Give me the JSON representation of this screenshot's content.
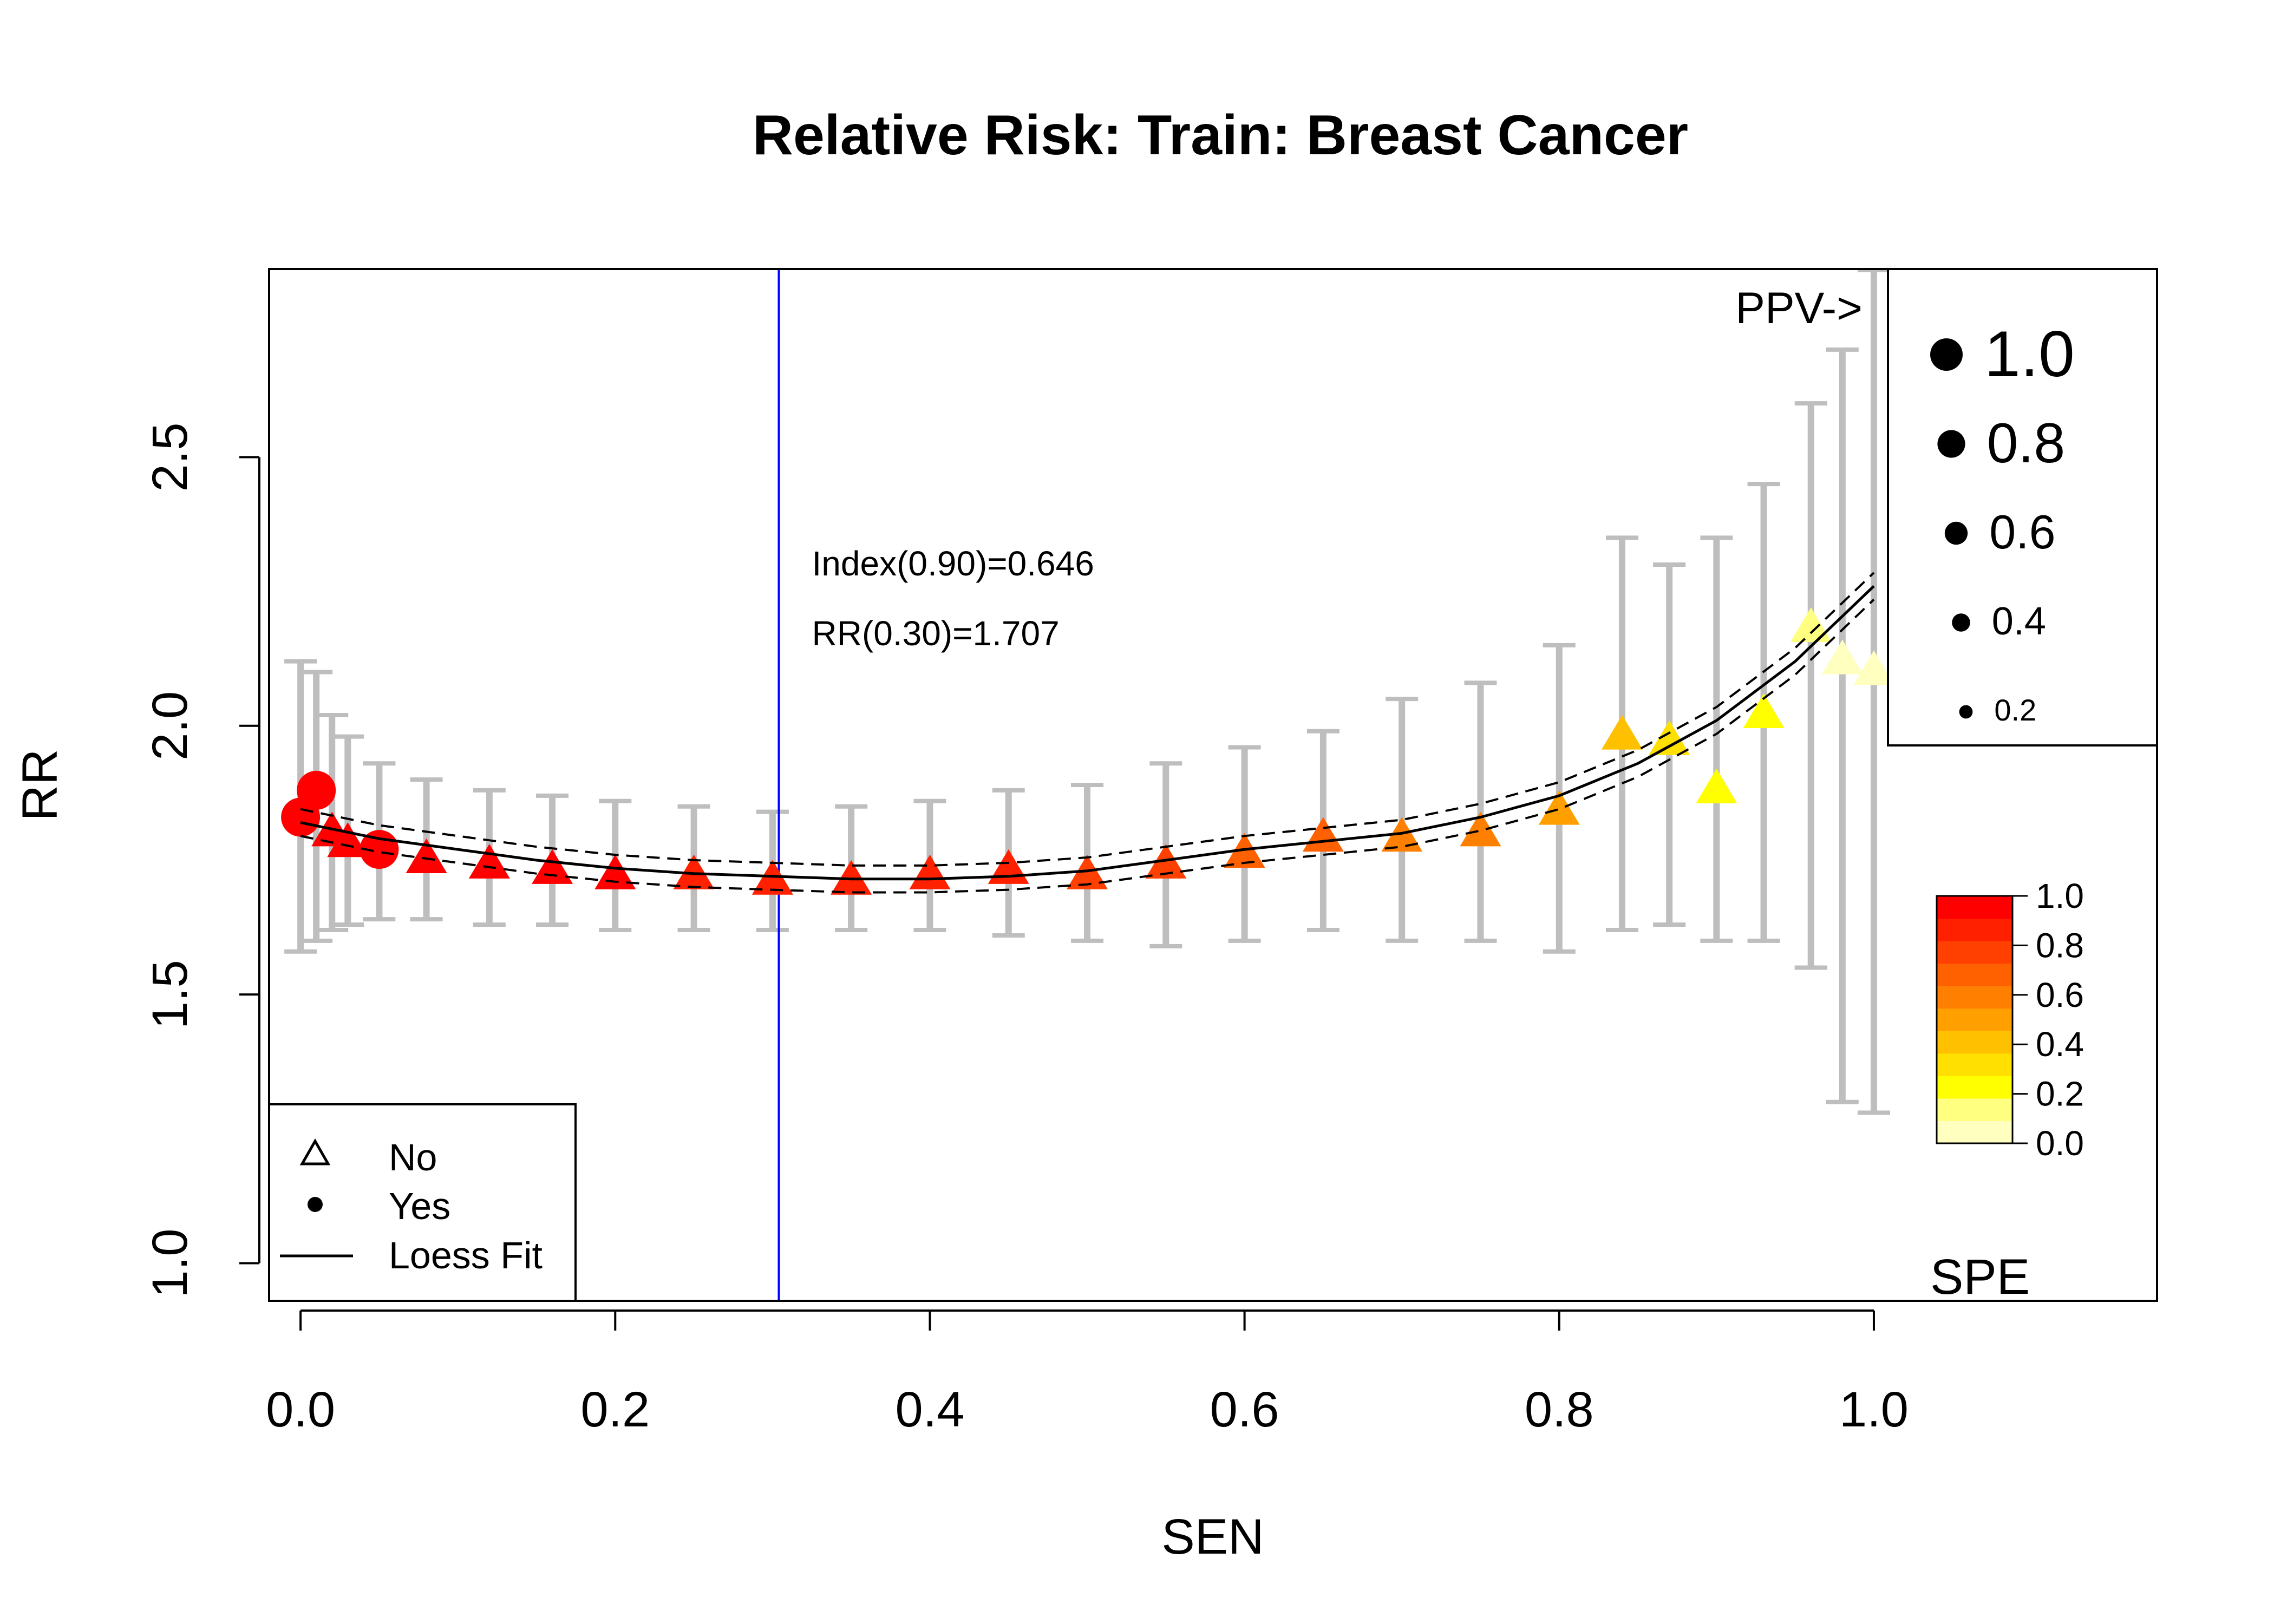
{
  "chart_data": {
    "type": "scatter",
    "title": "Relative Risk: Train: Breast Cancer",
    "xlabel": "SEN",
    "ylabel": "RR",
    "xlim": [
      -0.02,
      1.18
    ],
    "ylim": [
      0.93,
      2.85
    ],
    "x_ticks": [
      0.0,
      0.2,
      0.4,
      0.6,
      0.8,
      1.0
    ],
    "x_tick_labels": [
      "0.0",
      "0.2",
      "0.4",
      "0.6",
      "0.8",
      "1.0"
    ],
    "y_ticks": [
      1.0,
      1.5,
      2.0,
      2.5
    ],
    "y_tick_labels": [
      "1.0",
      "1.5",
      "2.0",
      "2.5"
    ],
    "vline": {
      "x": 0.304,
      "color": "#0000ff"
    },
    "annotations": [
      {
        "text": "Index(0.90)=0.646",
        "x": 0.325,
        "y": 2.28
      },
      {
        "text": "RR(0.30)=1.707",
        "x": 0.325,
        "y": 2.15
      }
    ],
    "legend": {
      "position": "bottom-left",
      "entries": [
        {
          "label": "No",
          "symbol": "triangle"
        },
        {
          "label": "Yes",
          "symbol": "dot"
        },
        {
          "label": "Loess Fit",
          "symbol": "line"
        }
      ]
    },
    "ppv_legend": {
      "position": "top-right",
      "title": "PPV->",
      "entries": [
        {
          "value": 1.0,
          "label": "1.0"
        },
        {
          "value": 0.8,
          "label": "0.8"
        },
        {
          "value": 0.6,
          "label": "0.6"
        },
        {
          "value": 0.4,
          "label": "0.4"
        },
        {
          "value": 0.2,
          "label": "0.2"
        }
      ]
    },
    "color_bar": {
      "position": "right",
      "label": "SPE",
      "tick_labels": [
        "1.0",
        "0.8",
        "0.6",
        "0.4",
        "0.2",
        "0.0"
      ],
      "colors": [
        "#ffffbf",
        "#ffff80",
        "#ffff00",
        "#ffe000",
        "#ffc000",
        "#ffa000",
        "#ff8000",
        "#ff6000",
        "#ff4000",
        "#ff2000",
        "#ff0000"
      ]
    },
    "colors": {
      "ci_bars": "#bebebe",
      "fit_line": "#000000"
    },
    "series": [
      {
        "name": "RR",
        "x": [
          0.0,
          0.01,
          0.02,
          0.03,
          0.05,
          0.08,
          0.12,
          0.16,
          0.2,
          0.25,
          0.3,
          0.35,
          0.4,
          0.45,
          0.5,
          0.55,
          0.6,
          0.65,
          0.7,
          0.75,
          0.8,
          0.84,
          0.87,
          0.9,
          0.93,
          0.96,
          0.98,
          1.0
        ],
        "y": [
          1.83,
          1.88,
          1.8,
          1.78,
          1.77,
          1.75,
          1.74,
          1.73,
          1.72,
          1.72,
          1.71,
          1.71,
          1.72,
          1.73,
          1.72,
          1.74,
          1.76,
          1.79,
          1.79,
          1.8,
          1.84,
          1.98,
          1.97,
          1.88,
          2.02,
          2.18,
          2.12,
          2.1
        ],
        "lower": [
          1.58,
          1.6,
          1.62,
          1.63,
          1.64,
          1.64,
          1.63,
          1.63,
          1.62,
          1.62,
          1.62,
          1.62,
          1.62,
          1.61,
          1.6,
          1.59,
          1.6,
          1.62,
          1.6,
          1.6,
          1.58,
          1.62,
          1.63,
          1.6,
          1.6,
          1.55,
          1.3,
          1.28
        ],
        "upper": [
          2.12,
          2.1,
          2.02,
          1.98,
          1.93,
          1.9,
          1.88,
          1.87,
          1.86,
          1.85,
          1.84,
          1.85,
          1.86,
          1.88,
          1.89,
          1.93,
          1.96,
          1.99,
          2.05,
          2.08,
          2.15,
          2.35,
          2.3,
          2.35,
          2.45,
          2.6,
          2.7,
          2.85
        ],
        "spe": [
          1.0,
          1.0,
          1.0,
          0.99,
          0.99,
          0.98,
          0.97,
          0.96,
          0.95,
          0.94,
          0.92,
          0.9,
          0.88,
          0.85,
          0.82,
          0.78,
          0.73,
          0.68,
          0.62,
          0.55,
          0.45,
          0.35,
          0.3,
          0.22,
          0.15,
          0.08,
          0.03,
          0.01
        ],
        "outcome": [
          "Yes",
          "Yes",
          "No",
          "No",
          "Yes",
          "No",
          "No",
          "No",
          "No",
          "No",
          "No",
          "No",
          "No",
          "No",
          "No",
          "No",
          "No",
          "No",
          "No",
          "No",
          "No",
          "No",
          "No",
          "No",
          "No",
          "No",
          "No",
          "No"
        ]
      }
    ],
    "loess_fit": {
      "x": [
        0.0,
        0.05,
        0.1,
        0.15,
        0.2,
        0.25,
        0.3,
        0.35,
        0.4,
        0.45,
        0.5,
        0.55,
        0.6,
        0.65,
        0.7,
        0.75,
        0.8,
        0.85,
        0.9,
        0.95,
        1.0
      ],
      "y": [
        1.82,
        1.79,
        1.77,
        1.75,
        1.735,
        1.725,
        1.72,
        1.715,
        1.715,
        1.72,
        1.73,
        1.75,
        1.77,
        1.785,
        1.8,
        1.83,
        1.87,
        1.93,
        2.01,
        2.12,
        2.26
      ],
      "band": 0.025
    }
  }
}
